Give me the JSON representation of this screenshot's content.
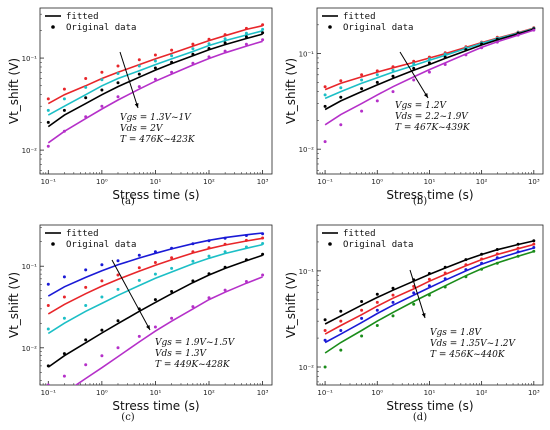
{
  "chart_data": [
    {
      "type": "line",
      "panel_label": "(a)",
      "xlabel": "Stress time (s)",
      "ylabel": "Vt_shift (V)",
      "xscale": "log",
      "yscale": "log",
      "xlim": [
        0.07,
        1500
      ],
      "ylim": [
        0.0055,
        0.35
      ],
      "xticks": [
        {
          "value": 0.1,
          "label": "10⁻¹"
        },
        {
          "value": 1,
          "label": "10⁰"
        },
        {
          "value": 10,
          "label": "10¹"
        },
        {
          "value": 100,
          "label": "10²"
        },
        {
          "value": 1000,
          "label": "10³"
        }
      ],
      "yticks": [
        {
          "value": 0.01,
          "label": "10⁻²"
        },
        {
          "value": 0.1,
          "label": "10⁻¹"
        }
      ],
      "legend": {
        "position": "top-left",
        "fitted_label": "fitted",
        "data_label": "Original data"
      },
      "annotation": [
        "Vgs = 1.3V~1V",
        "Vds = 2V",
        "T = 476K~423K"
      ],
      "x": [
        0.1,
        0.2,
        0.5,
        1,
        2,
        5,
        10,
        20,
        50,
        100,
        200,
        500,
        1000
      ],
      "series": [
        {
          "color": "#e8262a",
          "fit": [
            0.032,
            0.04,
            0.05,
            0.06,
            0.07,
            0.085,
            0.098,
            0.112,
            0.135,
            0.155,
            0.175,
            0.205,
            0.225
          ],
          "data": [
            0.036,
            0.046,
            0.06,
            0.07,
            0.082,
            0.096,
            0.108,
            0.122,
            0.142,
            0.16,
            0.18,
            0.21,
            0.23
          ]
        },
        {
          "color": "#1cbfc6",
          "fit": [
            0.024,
            0.03,
            0.04,
            0.05,
            0.06,
            0.073,
            0.085,
            0.098,
            0.118,
            0.137,
            0.155,
            0.178,
            0.198
          ],
          "data": [
            0.027,
            0.036,
            0.048,
            0.058,
            0.068,
            0.082,
            0.093,
            0.106,
            0.126,
            0.143,
            0.162,
            0.186,
            0.205
          ]
        },
        {
          "color": "#000000",
          "fit": [
            0.018,
            0.024,
            0.032,
            0.04,
            0.049,
            0.062,
            0.074,
            0.087,
            0.106,
            0.123,
            0.14,
            0.163,
            0.182
          ],
          "data": [
            0.02,
            0.027,
            0.037,
            0.045,
            0.054,
            0.067,
            0.078,
            0.09,
            0.11,
            0.127,
            0.146,
            0.17,
            0.188
          ]
        },
        {
          "color": "#b530c9",
          "fit": [
            0.012,
            0.016,
            0.022,
            0.028,
            0.035,
            0.046,
            0.056,
            0.067,
            0.084,
            0.099,
            0.114,
            0.135,
            0.152
          ],
          "data": [
            0.011,
            0.016,
            0.023,
            0.03,
            0.038,
            0.049,
            0.059,
            0.07,
            0.088,
            0.103,
            0.119,
            0.141,
            0.158
          ]
        }
      ]
    },
    {
      "type": "line",
      "panel_label": "(b)",
      "xlabel": "Stress time (s)",
      "ylabel": "Vt_shift (V)",
      "xscale": "log",
      "yscale": "log",
      "xlim": [
        0.07,
        1500
      ],
      "ylim": [
        0.0055,
        0.3
      ],
      "xticks": [
        {
          "value": 0.1,
          "label": "10⁻¹"
        },
        {
          "value": 1,
          "label": "10⁰"
        },
        {
          "value": 10,
          "label": "10¹"
        },
        {
          "value": 100,
          "label": "10²"
        },
        {
          "value": 1000,
          "label": "10³"
        }
      ],
      "yticks": [
        {
          "value": 0.01,
          "label": "10⁻²"
        },
        {
          "value": 0.1,
          "label": "10⁻¹"
        }
      ],
      "legend": {
        "position": "top-left",
        "fitted_label": "fitted",
        "data_label": "Original data"
      },
      "annotation": [
        "Vgs = 1.2V",
        "Vds = 2.2~1.9V",
        "T = 467K~439K"
      ],
      "x": [
        0.1,
        0.2,
        0.5,
        1,
        2,
        5,
        10,
        20,
        50,
        100,
        200,
        500,
        1000
      ],
      "series": [
        {
          "color": "#e8262a",
          "fit": [
            0.042,
            0.049,
            0.057,
            0.064,
            0.071,
            0.081,
            0.09,
            0.1,
            0.116,
            0.13,
            0.145,
            0.166,
            0.185
          ],
          "data": [
            0.045,
            0.052,
            0.06,
            0.066,
            0.073,
            0.083,
            0.092,
            0.102,
            0.118,
            0.132,
            0.148,
            0.168,
            0.186
          ]
        },
        {
          "color": "#1cbfc6",
          "fit": [
            0.034,
            0.04,
            0.049,
            0.056,
            0.064,
            0.075,
            0.085,
            0.096,
            0.113,
            0.128,
            0.143,
            0.164,
            0.182
          ],
          "data": [
            0.037,
            0.044,
            0.053,
            0.06,
            0.067,
            0.078,
            0.088,
            0.099,
            0.115,
            0.13,
            0.145,
            0.166,
            0.184
          ]
        },
        {
          "color": "#000000",
          "fit": [
            0.026,
            0.032,
            0.04,
            0.047,
            0.055,
            0.067,
            0.077,
            0.089,
            0.107,
            0.123,
            0.139,
            0.161,
            0.18
          ],
          "data": [
            0.028,
            0.035,
            0.043,
            0.05,
            0.058,
            0.07,
            0.08,
            0.092,
            0.11,
            0.126,
            0.141,
            0.163,
            0.182
          ]
        },
        {
          "color": "#b530c9",
          "fit": [
            0.018,
            0.023,
            0.03,
            0.037,
            0.045,
            0.057,
            0.068,
            0.08,
            0.099,
            0.116,
            0.133,
            0.156,
            0.176
          ],
          "data": [
            0.012,
            0.018,
            0.025,
            0.032,
            0.04,
            0.053,
            0.064,
            0.077,
            0.097,
            0.115,
            0.132,
            0.156,
            0.176
          ]
        }
      ]
    },
    {
      "type": "line",
      "panel_label": "(c)",
      "xlabel": "Stress time (s)",
      "ylabel": "Vt_shift (V)",
      "xscale": "log",
      "yscale": "log",
      "xlim": [
        0.07,
        1500
      ],
      "ylim": [
        0.0035,
        0.32
      ],
      "xticks": [
        {
          "value": 0.1,
          "label": "10⁻¹"
        },
        {
          "value": 1,
          "label": "10⁰"
        },
        {
          "value": 10,
          "label": "10¹"
        },
        {
          "value": 100,
          "label": "10²"
        },
        {
          "value": 1000,
          "label": "10³"
        }
      ],
      "yticks": [
        {
          "value": 0.01,
          "label": "10⁻²"
        },
        {
          "value": 0.1,
          "label": "10⁻¹"
        }
      ],
      "legend": {
        "position": "top-left",
        "fitted_label": "fitted",
        "data_label": "Original data"
      },
      "annotation": [
        "Vgs = 1.9V~1.5V",
        "Vds = 1.3V",
        "T = 449K~428K"
      ],
      "x": [
        0.1,
        0.2,
        0.5,
        1,
        2,
        5,
        10,
        20,
        50,
        100,
        200,
        500,
        1000
      ],
      "series": [
        {
          "color": "#1a1ad6",
          "fit": [
            0.043,
            0.056,
            0.073,
            0.088,
            0.104,
            0.126,
            0.144,
            0.163,
            0.189,
            0.208,
            0.224,
            0.243,
            0.255
          ],
          "data": [
            0.06,
            0.074,
            0.09,
            0.104,
            0.117,
            0.136,
            0.15,
            0.166,
            0.188,
            0.205,
            0.22,
            0.238,
            0.25
          ]
        },
        {
          "color": "#e8262a",
          "fit": [
            0.026,
            0.034,
            0.046,
            0.057,
            0.069,
            0.087,
            0.103,
            0.12,
            0.145,
            0.164,
            0.182,
            0.204,
            0.22
          ],
          "data": [
            0.033,
            0.042,
            0.055,
            0.066,
            0.078,
            0.096,
            0.111,
            0.127,
            0.15,
            0.168,
            0.186,
            0.207,
            0.222
          ]
        },
        {
          "color": "#1cbfc6",
          "fit": [
            0.015,
            0.02,
            0.028,
            0.035,
            0.044,
            0.058,
            0.071,
            0.085,
            0.107,
            0.125,
            0.143,
            0.166,
            0.184
          ],
          "data": [
            0.017,
            0.023,
            0.033,
            0.042,
            0.052,
            0.067,
            0.08,
            0.094,
            0.115,
            0.133,
            0.15,
            0.172,
            0.19
          ]
        },
        {
          "color": "#000000",
          "fit": [
            0.0058,
            0.008,
            0.0115,
            0.0152,
            0.0198,
            0.028,
            0.036,
            0.046,
            0.063,
            0.078,
            0.094,
            0.117,
            0.136
          ],
          "data": [
            0.006,
            0.0085,
            0.0125,
            0.0165,
            0.0215,
            0.03,
            0.039,
            0.049,
            0.066,
            0.081,
            0.097,
            0.12,
            0.14
          ]
        },
        {
          "color": "#b530c9",
          "fit": [
            0.002,
            0.0028,
            0.0042,
            0.0057,
            0.0078,
            0.0118,
            0.016,
            0.0212,
            0.03,
            0.039,
            0.048,
            0.062,
            0.074
          ],
          "data": [
            0.0035,
            0.0045,
            0.0062,
            0.008,
            0.01,
            0.0138,
            0.018,
            0.023,
            0.032,
            0.041,
            0.051,
            0.065,
            0.078
          ]
        }
      ]
    },
    {
      "type": "line",
      "panel_label": "(d)",
      "xlabel": "Stress time (s)",
      "ylabel": "Vt_shift (V)",
      "xscale": "log",
      "yscale": "log",
      "xlim": [
        0.07,
        1500
      ],
      "ylim": [
        0.0065,
        0.3
      ],
      "xticks": [
        {
          "value": 0.1,
          "label": "10⁻¹"
        },
        {
          "value": 1,
          "label": "10⁰"
        },
        {
          "value": 10,
          "label": "10¹"
        },
        {
          "value": 100,
          "label": "10²"
        },
        {
          "value": 1000,
          "label": "10³"
        }
      ],
      "yticks": [
        {
          "value": 0.01,
          "label": "10⁻²"
        },
        {
          "value": 0.1,
          "label": "10⁻¹"
        }
      ],
      "legend": {
        "position": "top-left",
        "fitted_label": "fitted",
        "data_label": "Original data"
      },
      "annotation": [
        "Vgs = 1.8V",
        "Vds = 1.35V~1.2V",
        "T = 456K~440K"
      ],
      "x": [
        0.1,
        0.2,
        0.5,
        1,
        2,
        5,
        10,
        20,
        50,
        100,
        200,
        500,
        1000
      ],
      "series": [
        {
          "color": "#000000",
          "fit": [
            0.028,
            0.034,
            0.044,
            0.053,
            0.063,
            0.078,
            0.092,
            0.107,
            0.13,
            0.148,
            0.166,
            0.188,
            0.205
          ],
          "data": [
            0.031,
            0.038,
            0.048,
            0.057,
            0.066,
            0.081,
            0.094,
            0.109,
            0.131,
            0.149,
            0.167,
            0.189,
            0.206
          ]
        },
        {
          "color": "#e8262a",
          "fit": [
            0.022,
            0.027,
            0.035,
            0.043,
            0.052,
            0.065,
            0.078,
            0.092,
            0.113,
            0.131,
            0.148,
            0.17,
            0.188
          ],
          "data": [
            0.024,
            0.03,
            0.039,
            0.047,
            0.056,
            0.069,
            0.082,
            0.095,
            0.116,
            0.133,
            0.15,
            0.172,
            0.19
          ]
        },
        {
          "color": "#1a1ad6",
          "fit": [
            0.018,
            0.022,
            0.029,
            0.036,
            0.044,
            0.056,
            0.067,
            0.08,
            0.1,
            0.117,
            0.134,
            0.156,
            0.173
          ],
          "data": [
            0.019,
            0.024,
            0.032,
            0.039,
            0.047,
            0.059,
            0.07,
            0.083,
            0.103,
            0.12,
            0.137,
            0.158,
            0.175
          ]
        },
        {
          "color": "#1a8c1a",
          "fit": [
            0.014,
            0.018,
            0.024,
            0.03,
            0.037,
            0.048,
            0.058,
            0.07,
            0.089,
            0.105,
            0.121,
            0.142,
            0.159
          ],
          "data": [
            0.01,
            0.015,
            0.021,
            0.027,
            0.034,
            0.045,
            0.056,
            0.068,
            0.087,
            0.104,
            0.12,
            0.142,
            0.16
          ]
        }
      ]
    }
  ]
}
